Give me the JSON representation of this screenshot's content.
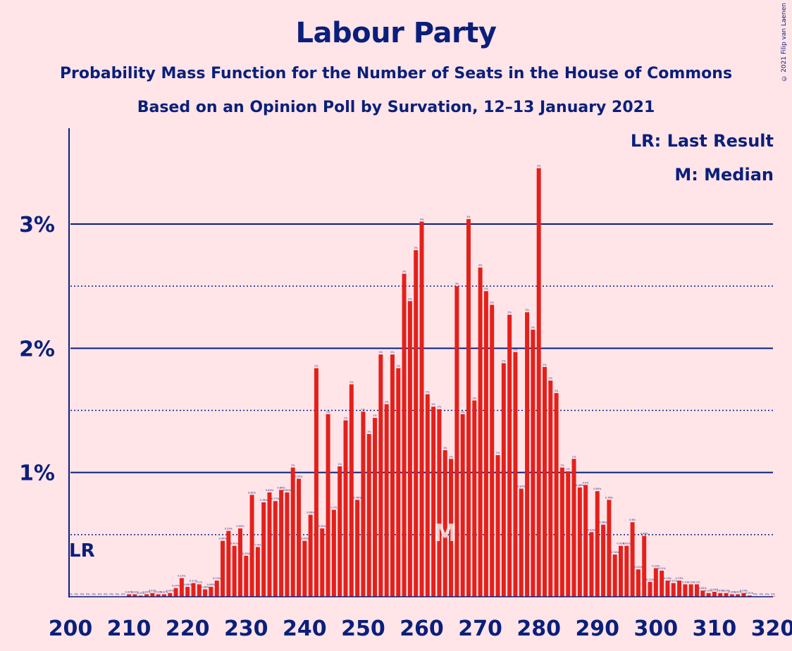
{
  "title": "Labour Party",
  "subtitle": "Probability Mass Function for the Number of Seats in the House of Commons",
  "subtitle2": "Based on an Opinion Poll by Survation, 12–13 January 2021",
  "copyright": "© 2021 Filip van Laenen",
  "legend": {
    "last_result": "LR: Last Result",
    "median": "M: Median"
  },
  "markers": {
    "last_result_label": "LR",
    "last_result_seat": 202,
    "median_label": "M",
    "median_seat": 264
  },
  "colors": {
    "background": "#FFE4E8",
    "bar": "#E4201B",
    "axis": "#0A1F7A"
  },
  "chart_data": {
    "type": "bar",
    "title": "Labour Party",
    "xlabel": "",
    "ylabel": "",
    "xlim": [
      200,
      320
    ],
    "ylim": [
      0,
      3.7
    ],
    "x_ticks": [
      "200",
      "210",
      "220",
      "230",
      "240",
      "250",
      "260",
      "270",
      "280",
      "290",
      "300",
      "310",
      "320"
    ],
    "y_ticks": [
      {
        "value": 1,
        "label": "1%"
      },
      {
        "value": 2,
        "label": "2%"
      },
      {
        "value": 3,
        "label": "3%"
      }
    ],
    "grid": "solid at 1%, 2%, 3%; dotted at 0.5%, 1.5%, 2.5%",
    "unit": "%",
    "x": [
      200,
      201,
      202,
      203,
      204,
      205,
      206,
      207,
      208,
      209,
      210,
      211,
      212,
      213,
      214,
      215,
      216,
      217,
      218,
      219,
      220,
      221,
      222,
      223,
      224,
      225,
      226,
      227,
      228,
      229,
      230,
      231,
      232,
      233,
      234,
      235,
      236,
      237,
      238,
      239,
      240,
      241,
      242,
      243,
      244,
      245,
      246,
      247,
      248,
      249,
      250,
      251,
      252,
      253,
      254,
      255,
      256,
      257,
      258,
      259,
      260,
      261,
      262,
      263,
      264,
      265,
      266,
      267,
      268,
      269,
      270,
      271,
      272,
      273,
      274,
      275,
      276,
      277,
      278,
      279,
      280,
      281,
      282,
      283,
      284,
      285,
      286,
      287,
      288,
      289,
      290,
      291,
      292,
      293,
      294,
      295,
      296,
      297,
      298,
      299,
      300,
      301,
      302,
      303,
      304,
      305,
      306,
      307,
      308,
      309,
      310,
      311,
      312,
      313,
      314,
      315,
      316,
      317,
      318,
      319,
      320
    ],
    "values": [
      0,
      0,
      0,
      0,
      0,
      0,
      0,
      0,
      0,
      0,
      0.02,
      0.02,
      0.01,
      0.02,
      0.03,
      0.02,
      0.02,
      0.03,
      0.07,
      0.15,
      0.08,
      0.11,
      0.1,
      0.06,
      0.08,
      0.13,
      0.45,
      0.53,
      0.41,
      0.55,
      0.33,
      0.82,
      0.4,
      0.76,
      0.84,
      0.77,
      0.86,
      0.84,
      1.04,
      0.95,
      0.45,
      0.66,
      1.84,
      0.55,
      1.47,
      0.7,
      1.05,
      1.42,
      1.71,
      0.78,
      1.49,
      1.31,
      1.44,
      1.95,
      1.55,
      1.95,
      1.84,
      2.6,
      2.38,
      2.79,
      3.02,
      1.63,
      1.53,
      1.51,
      1.18,
      1.11,
      2.5,
      1.47,
      3.04,
      1.58,
      2.65,
      2.46,
      2.35,
      1.14,
      1.88,
      2.27,
      1.97,
      0.87,
      2.29,
      2.15,
      3.45,
      1.85,
      1.74,
      1.64,
      1.04,
      1.01,
      1.11,
      0.88,
      0.9,
      0.52,
      0.85,
      0.58,
      0.78,
      0.34,
      0.41,
      0.41,
      0.6,
      0.22,
      0.49,
      0.12,
      0.23,
      0.21,
      0.13,
      0.11,
      0.13,
      0.1,
      0.1,
      0.1,
      0.05,
      0.03,
      0.04,
      0.03,
      0.03,
      0.02,
      0.02,
      0.03,
      0.01,
      0,
      0,
      0,
      0
    ]
  }
}
